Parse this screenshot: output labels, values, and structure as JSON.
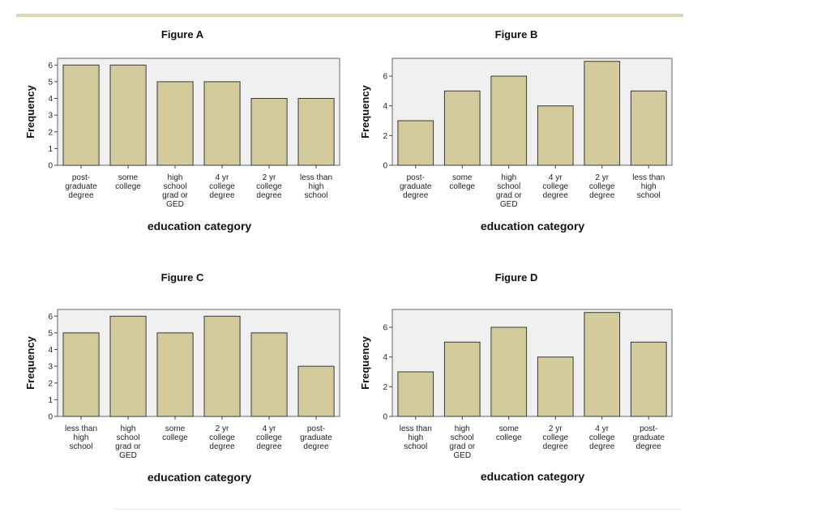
{
  "figures": [
    {
      "title": "Figure A",
      "xlabel": "education category",
      "ylabel": "Frequency",
      "type": "bar",
      "yticks": [
        0,
        1,
        2,
        3,
        4,
        5,
        6
      ],
      "ylim": [
        0,
        6.4
      ],
      "categories": [
        [
          "post-",
          "graduate",
          "degree"
        ],
        [
          "some",
          "college"
        ],
        [
          "high",
          "school",
          "grad or",
          "GED"
        ],
        [
          "4 yr",
          "college",
          "degree"
        ],
        [
          "2 yr",
          "college",
          "degree"
        ],
        [
          "less than",
          "high",
          "school"
        ]
      ],
      "values": [
        6,
        6,
        5,
        5,
        4,
        4
      ]
    },
    {
      "title": "Figure B",
      "xlabel": "education category",
      "ylabel": "Frequency",
      "type": "bar",
      "yticks": [
        0,
        2,
        4,
        6
      ],
      "ylim": [
        0,
        7.2
      ],
      "categories": [
        [
          "post-",
          "graduate",
          "degree"
        ],
        [
          "some",
          "college"
        ],
        [
          "high",
          "school",
          "grad or",
          "GED"
        ],
        [
          "4 yr",
          "college",
          "degree"
        ],
        [
          "2 yr",
          "college",
          "degree"
        ],
        [
          "less than",
          "high",
          "school"
        ]
      ],
      "values": [
        3,
        5,
        6,
        4,
        7,
        5
      ]
    },
    {
      "title": "Figure C",
      "xlabel": "education category",
      "ylabel": "Frequency",
      "type": "bar",
      "yticks": [
        0,
        1,
        2,
        3,
        4,
        5,
        6
      ],
      "ylim": [
        0,
        6.4
      ],
      "categories": [
        [
          "less than",
          "high",
          "school"
        ],
        [
          "high",
          "school",
          "grad or",
          "GED"
        ],
        [
          "some",
          "college"
        ],
        [
          "2 yr",
          "college",
          "degree"
        ],
        [
          "4 yr",
          "college",
          "degree"
        ],
        [
          "post-",
          "graduate",
          "degree"
        ]
      ],
      "values": [
        5,
        6,
        5,
        6,
        5,
        3
      ]
    },
    {
      "title": "Figure D",
      "xlabel": "education category",
      "ylabel": "Frequency",
      "type": "bar",
      "yticks": [
        0,
        2,
        4,
        6
      ],
      "ylim": [
        0,
        7.2
      ],
      "categories": [
        [
          "less than",
          "high",
          "school"
        ],
        [
          "high",
          "school",
          "grad or",
          "GED"
        ],
        [
          "some",
          "college"
        ],
        [
          "2 yr",
          "college",
          "degree"
        ],
        [
          "4 yr",
          "college",
          "degree"
        ],
        [
          "post-",
          "graduate",
          "degree"
        ]
      ],
      "values": [
        3,
        5,
        6,
        4,
        7,
        5
      ]
    }
  ],
  "chart_data": [
    {
      "type": "bar",
      "title": "Figure A",
      "xlabel": "education category",
      "ylabel": "Frequency",
      "categories": [
        "post-graduate degree",
        "some college",
        "high school grad or GED",
        "4 yr college degree",
        "2 yr college degree",
        "less than high school"
      ],
      "values": [
        6,
        6,
        5,
        5,
        4,
        4
      ],
      "ylim": [
        0,
        6.4
      ],
      "grid": false
    },
    {
      "type": "bar",
      "title": "Figure B",
      "xlabel": "education category",
      "ylabel": "Frequency",
      "categories": [
        "post-graduate degree",
        "some college",
        "high school grad or GED",
        "4 yr college degree",
        "2 yr college degree",
        "less than high school"
      ],
      "values": [
        3,
        5,
        6,
        4,
        7,
        5
      ],
      "ylim": [
        0,
        7.2
      ],
      "grid": false
    },
    {
      "type": "bar",
      "title": "Figure C",
      "xlabel": "education category",
      "ylabel": "Frequency",
      "categories": [
        "less than high school",
        "high school grad or GED",
        "some college",
        "2 yr college degree",
        "4 yr college degree",
        "post-graduate degree"
      ],
      "values": [
        5,
        6,
        5,
        6,
        5,
        3
      ],
      "ylim": [
        0,
        6.4
      ],
      "grid": false
    },
    {
      "type": "bar",
      "title": "Figure D",
      "xlabel": "education category",
      "ylabel": "Frequency",
      "categories": [
        "less than high school",
        "high school grad or GED",
        "some college",
        "2 yr college degree",
        "4 yr college degree",
        "post-graduate degree"
      ],
      "values": [
        3,
        5,
        6,
        4,
        7,
        5
      ],
      "ylim": [
        0,
        7.2
      ],
      "grid": false
    }
  ],
  "colors": {
    "bar_fill": "#d3cb9c",
    "bar_stroke": "#3a3a3a",
    "plot_bg": "#f0f0f0",
    "rule": "#ddd6b3"
  }
}
